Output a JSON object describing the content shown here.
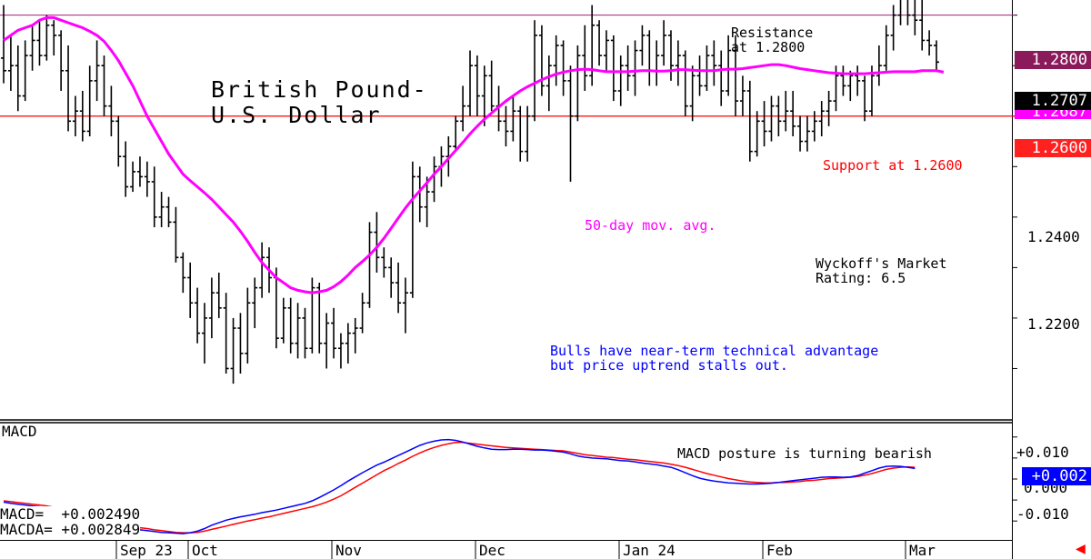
{
  "title_line1": "British Pound-",
  "title_line2": "U.S. Dollar",
  "annotations": {
    "resistance": "Resistance\nat 1.2800",
    "support": "Support at 1.2600",
    "ma": "50-day mov. avg.",
    "rating": "Wyckoff's Market\nRating: 6.5",
    "comment": "Bulls have near-term technical advantage\nbut price uptrend stalls out.",
    "macd_comment": "MACD posture is turning bearish"
  },
  "colors": {
    "price": "#000000",
    "ma": "#ff00ff",
    "resistance_line": "#a0207a",
    "support_line": "#ff0000",
    "resistance_tag": "#8b1a5a",
    "support_tag": "#ff2020",
    "macd": "#0000ff",
    "macda": "#ff0000",
    "text_blue": "#0000ff",
    "text_red": "#ff0000",
    "text_magenta": "#ff00ff"
  },
  "price_tags": {
    "resistance": "1.2800",
    "last": "1.2707",
    "ma": "1.2687",
    "support": "1.2600"
  },
  "macd_tag": "+0.002",
  "macd_panel_label": "MACD",
  "macd_readout": {
    "macd": "MACD=  +0.002490",
    "macda": "MACDA= +0.002849"
  },
  "chart_data": {
    "type": "line",
    "price_axis": {
      "ylim": [
        1.2,
        1.283
      ],
      "ticks": [
        "1.2400",
        "1.2200"
      ]
    },
    "macd_axis": {
      "ylim": [
        -0.0145,
        0.0132
      ],
      "ticks": [
        "+0.010",
        "0.000",
        "-0.010"
      ]
    },
    "x_labels": [
      "Sep 23",
      "Oct",
      "Nov",
      "Dec",
      "Jan 24",
      "Feb",
      "Mar"
    ],
    "x_label_index": [
      16,
      26,
      46,
      66,
      86,
      106,
      126
    ],
    "levels": {
      "resistance": 1.28,
      "support": 1.26
    },
    "price_bars": [
      [
        1.2715,
        1.282,
        1.2665,
        1.269
      ],
      [
        1.269,
        1.276,
        1.265,
        1.27
      ],
      [
        1.27,
        1.274,
        1.261,
        1.264
      ],
      [
        1.264,
        1.275,
        1.263,
        1.272
      ],
      [
        1.272,
        1.278,
        1.269,
        1.275
      ],
      [
        1.275,
        1.279,
        1.27,
        1.272
      ],
      [
        1.272,
        1.28,
        1.271,
        1.278
      ],
      [
        1.278,
        1.279,
        1.272,
        1.276
      ],
      [
        1.276,
        1.277,
        1.265,
        1.269
      ],
      [
        1.269,
        1.274,
        1.257,
        1.259
      ],
      [
        1.259,
        1.264,
        1.256,
        1.261
      ],
      [
        1.261,
        1.265,
        1.255,
        1.257
      ],
      [
        1.257,
        1.27,
        1.256,
        1.267
      ],
      [
        1.267,
        1.275,
        1.263,
        1.27
      ],
      [
        1.27,
        1.272,
        1.26,
        1.262
      ],
      [
        1.262,
        1.266,
        1.256,
        1.259
      ],
      [
        1.259,
        1.26,
        1.25,
        1.252
      ],
      [
        1.252,
        1.255,
        1.244,
        1.246
      ],
      [
        1.246,
        1.251,
        1.245,
        1.249
      ],
      [
        1.249,
        1.252,
        1.246,
        1.248
      ],
      [
        1.248,
        1.251,
        1.244,
        1.247
      ],
      [
        1.247,
        1.25,
        1.238,
        1.24
      ],
      [
        1.24,
        1.245,
        1.238,
        1.242
      ],
      [
        1.242,
        1.244,
        1.238,
        1.239
      ],
      [
        1.239,
        1.242,
        1.231,
        1.232
      ],
      [
        1.232,
        1.233,
        1.225,
        1.228
      ],
      [
        1.228,
        1.231,
        1.22,
        1.223
      ],
      [
        1.223,
        1.226,
        1.215,
        1.217
      ],
      [
        1.217,
        1.223,
        1.211,
        1.22
      ],
      [
        1.22,
        1.228,
        1.216,
        1.225
      ],
      [
        1.225,
        1.229,
        1.22,
        1.222
      ],
      [
        1.222,
        1.225,
        1.209,
        1.21
      ],
      [
        1.21,
        1.22,
        1.207,
        1.218
      ],
      [
        1.218,
        1.221,
        1.209,
        1.213
      ],
      [
        1.213,
        1.226,
        1.211,
        1.223
      ],
      [
        1.223,
        1.228,
        1.218,
        1.226
      ],
      [
        1.226,
        1.235,
        1.224,
        1.232
      ],
      [
        1.232,
        1.234,
        1.225,
        1.228
      ],
      [
        1.228,
        1.23,
        1.214,
        1.216
      ],
      [
        1.216,
        1.224,
        1.215,
        1.222
      ],
      [
        1.222,
        1.224,
        1.213,
        1.215
      ],
      [
        1.215,
        1.223,
        1.212,
        1.22
      ],
      [
        1.22,
        1.222,
        1.212,
        1.214
      ],
      [
        1.214,
        1.228,
        1.213,
        1.226
      ],
      [
        1.226,
        1.227,
        1.213,
        1.215
      ],
      [
        1.215,
        1.221,
        1.21,
        1.219
      ],
      [
        1.219,
        1.222,
        1.212,
        1.214
      ],
      [
        1.214,
        1.217,
        1.21,
        1.215
      ],
      [
        1.215,
        1.219,
        1.211,
        1.217
      ],
      [
        1.217,
        1.22,
        1.213,
        1.218
      ],
      [
        1.218,
        1.225,
        1.217,
        1.223
      ],
      [
        1.223,
        1.239,
        1.222,
        1.237
      ],
      [
        1.237,
        1.241,
        1.229,
        1.232
      ],
      [
        1.232,
        1.234,
        1.228,
        1.23
      ],
      [
        1.23,
        1.232,
        1.224,
        1.227
      ],
      [
        1.227,
        1.231,
        1.221,
        1.223
      ],
      [
        1.223,
        1.228,
        1.217,
        1.225
      ],
      [
        1.225,
        1.251,
        1.224,
        1.248
      ],
      [
        1.248,
        1.25,
        1.239,
        1.242
      ],
      [
        1.242,
        1.248,
        1.238,
        1.245
      ],
      [
        1.245,
        1.252,
        1.243,
        1.25
      ],
      [
        1.25,
        1.254,
        1.246,
        1.252
      ],
      [
        1.252,
        1.256,
        1.248,
        1.254
      ],
      [
        1.254,
        1.26,
        1.253,
        1.259
      ],
      [
        1.259,
        1.266,
        1.257,
        1.262
      ],
      [
        1.262,
        1.273,
        1.26,
        1.27
      ],
      [
        1.27,
        1.272,
        1.26,
        1.264
      ],
      [
        1.264,
        1.27,
        1.258,
        1.268
      ],
      [
        1.268,
        1.271,
        1.261,
        1.262
      ],
      [
        1.262,
        1.266,
        1.257,
        1.259
      ],
      [
        1.259,
        1.262,
        1.254,
        1.257
      ],
      [
        1.257,
        1.264,
        1.255,
        1.261
      ],
      [
        1.261,
        1.262,
        1.251,
        1.253
      ],
      [
        1.253,
        1.262,
        1.251,
        1.26
      ],
      [
        1.26,
        1.279,
        1.259,
        1.276
      ],
      [
        1.276,
        1.278,
        1.264,
        1.266
      ],
      [
        1.266,
        1.272,
        1.261,
        1.27
      ],
      [
        1.27,
        1.276,
        1.266,
        1.274
      ],
      [
        1.274,
        1.275,
        1.264,
        1.267
      ],
      [
        1.267,
        1.27,
        1.247,
        1.26
      ],
      [
        1.26,
        1.274,
        1.259,
        1.272
      ],
      [
        1.272,
        1.278,
        1.265,
        1.268
      ],
      [
        1.268,
        1.282,
        1.266,
        1.278
      ],
      [
        1.278,
        1.279,
        1.27,
        1.272
      ],
      [
        1.272,
        1.277,
        1.269,
        1.275
      ],
      [
        1.275,
        1.276,
        1.263,
        1.265
      ],
      [
        1.265,
        1.272,
        1.262,
        1.27
      ],
      [
        1.27,
        1.274,
        1.265,
        1.268
      ],
      [
        1.268,
        1.275,
        1.264,
        1.273
      ],
      [
        1.273,
        1.278,
        1.27,
        1.276
      ],
      [
        1.276,
        1.277,
        1.266,
        1.269
      ],
      [
        1.269,
        1.275,
        1.266,
        1.272
      ],
      [
        1.272,
        1.279,
        1.27,
        1.276
      ],
      [
        1.276,
        1.277,
        1.267,
        1.27
      ],
      [
        1.27,
        1.275,
        1.266,
        1.272
      ],
      [
        1.272,
        1.273,
        1.26,
        1.262
      ],
      [
        1.262,
        1.27,
        1.259,
        1.268
      ],
      [
        1.268,
        1.272,
        1.264,
        1.266
      ],
      [
        1.266,
        1.274,
        1.265,
        1.272
      ],
      [
        1.272,
        1.275,
        1.266,
        1.27
      ],
      [
        1.27,
        1.273,
        1.262,
        1.265
      ],
      [
        1.265,
        1.276,
        1.264,
        1.273
      ],
      [
        1.273,
        1.276,
        1.26,
        1.263
      ],
      [
        1.263,
        1.268,
        1.26,
        1.265
      ],
      [
        1.265,
        1.267,
        1.251,
        1.253
      ],
      [
        1.253,
        1.261,
        1.252,
        1.259
      ],
      [
        1.259,
        1.263,
        1.254,
        1.257
      ],
      [
        1.257,
        1.264,
        1.255,
        1.262
      ],
      [
        1.262,
        1.264,
        1.256,
        1.259
      ],
      [
        1.259,
        1.265,
        1.257,
        1.261
      ],
      [
        1.261,
        1.265,
        1.256,
        1.258
      ],
      [
        1.258,
        1.26,
        1.253,
        1.255
      ],
      [
        1.255,
        1.26,
        1.253,
        1.257
      ],
      [
        1.257,
        1.261,
        1.255,
        1.259
      ],
      [
        1.259,
        1.263,
        1.256,
        1.261
      ],
      [
        1.261,
        1.265,
        1.258,
        1.263
      ],
      [
        1.263,
        1.27,
        1.261,
        1.268
      ],
      [
        1.268,
        1.27,
        1.264,
        1.266
      ],
      [
        1.266,
        1.269,
        1.263,
        1.268
      ],
      [
        1.268,
        1.27,
        1.264,
        1.267
      ],
      [
        1.267,
        1.268,
        1.259,
        1.261
      ],
      [
        1.261,
        1.27,
        1.26,
        1.268
      ],
      [
        1.268,
        1.274,
        1.266,
        1.27
      ],
      [
        1.27,
        1.278,
        1.269,
        1.276
      ],
      [
        1.276,
        1.282,
        1.273,
        1.28
      ],
      [
        1.28,
        1.29,
        1.278,
        1.286
      ],
      [
        1.286,
        1.288,
        1.278,
        1.28
      ],
      [
        1.28,
        1.284,
        1.276,
        1.279
      ],
      [
        1.279,
        1.283,
        1.273,
        1.275
      ],
      [
        1.275,
        1.277,
        1.272,
        1.274
      ],
      [
        1.274,
        1.275,
        1.269,
        1.2707
      ]
    ],
    "ma_50": [
      1.275,
      1.276,
      1.277,
      1.2775,
      1.278,
      1.279,
      1.2795,
      1.2795,
      1.279,
      1.2785,
      1.278,
      1.2775,
      1.2768,
      1.276,
      1.2748,
      1.273,
      1.271,
      1.2685,
      1.266,
      1.263,
      1.26,
      1.2575,
      1.255,
      1.2525,
      1.2505,
      1.2485,
      1.2472,
      1.246,
      1.2448,
      1.2435,
      1.242,
      1.2405,
      1.239,
      1.2372,
      1.2352,
      1.233,
      1.231,
      1.2295,
      1.228,
      1.227,
      1.226,
      1.2255,
      1.2252,
      1.225,
      1.2252,
      1.2255,
      1.2262,
      1.2272,
      1.2285,
      1.23,
      1.2312,
      1.2325,
      1.234,
      1.2358,
      1.2378,
      1.2398,
      1.2418,
      1.2436,
      1.2452,
      1.2468,
      1.2485,
      1.25,
      1.2516,
      1.2532,
      1.2548,
      1.2565,
      1.258,
      1.2594,
      1.2606,
      1.2618,
      1.263,
      1.264,
      1.265,
      1.2658,
      1.2665,
      1.2672,
      1.2678,
      1.2683,
      1.2687,
      1.269,
      1.2692,
      1.2693,
      1.2692,
      1.269,
      1.2688,
      1.2688,
      1.2688,
      1.2688,
      1.2689,
      1.269,
      1.269,
      1.2689,
      1.2689,
      1.269,
      1.2692,
      1.2692,
      1.2691,
      1.269,
      1.269,
      1.269,
      1.2692,
      1.2693,
      1.2693,
      1.2694,
      1.2696,
      1.2698,
      1.27,
      1.2702,
      1.2702,
      1.27,
      1.2697,
      1.2694,
      1.2692,
      1.269,
      1.2688,
      1.2686,
      1.2685,
      1.2684,
      1.2684,
      1.2684,
      1.2684,
      1.2685,
      1.2686,
      1.2687,
      1.2688,
      1.2688,
      1.2688,
      1.2688,
      1.269,
      1.269,
      1.269,
      1.2687
    ],
    "macd_series": [
      [
        -0.0055,
        -0.0052
      ],
      [
        -0.0058,
        -0.0054
      ],
      [
        -0.006,
        -0.0056
      ],
      [
        -0.0062,
        -0.0058
      ],
      [
        -0.0064,
        -0.006
      ],
      [
        -0.0066,
        -0.0062
      ],
      [
        -0.007,
        -0.0064
      ],
      [
        -0.0075,
        -0.0067
      ],
      [
        -0.008,
        -0.0071
      ],
      [
        -0.0085,
        -0.0075
      ],
      [
        -0.009,
        -0.008
      ],
      [
        -0.0095,
        -0.0085
      ],
      [
        -0.01,
        -0.009
      ],
      [
        -0.0105,
        -0.0095
      ],
      [
        -0.011,
        -0.01
      ],
      [
        -0.0113,
        -0.0104
      ],
      [
        -0.0116,
        -0.0108
      ],
      [
        -0.0118,
        -0.0111
      ],
      [
        -0.0119,
        -0.0113
      ],
      [
        -0.0121,
        -0.0116
      ],
      [
        -0.0123,
        -0.0118
      ],
      [
        -0.0125,
        -0.0121
      ],
      [
        -0.0127,
        -0.0123
      ],
      [
        -0.0128,
        -0.0125
      ],
      [
        -0.0129,
        -0.0127
      ],
      [
        -0.013,
        -0.0128
      ],
      [
        -0.0128,
        -0.0128
      ],
      [
        -0.0124,
        -0.0127
      ],
      [
        -0.0118,
        -0.0124
      ],
      [
        -0.011,
        -0.012
      ],
      [
        -0.0104,
        -0.0116
      ],
      [
        -0.0098,
        -0.0112
      ],
      [
        -0.0094,
        -0.0108
      ],
      [
        -0.009,
        -0.0104
      ],
      [
        -0.0087,
        -0.01
      ],
      [
        -0.0084,
        -0.0097
      ],
      [
        -0.008,
        -0.0093
      ],
      [
        -0.0077,
        -0.009
      ],
      [
        -0.0074,
        -0.0086
      ],
      [
        -0.007,
        -0.0082
      ],
      [
        -0.0066,
        -0.0078
      ],
      [
        -0.0062,
        -0.0074
      ],
      [
        -0.0058,
        -0.007
      ],
      [
        -0.0052,
        -0.0066
      ],
      [
        -0.0044,
        -0.0061
      ],
      [
        -0.0035,
        -0.0055
      ],
      [
        -0.0026,
        -0.0048
      ],
      [
        -0.0016,
        -0.004
      ],
      [
        -0.0005,
        -0.003
      ],
      [
        0.0005,
        -0.002
      ],
      [
        0.0015,
        -0.001
      ],
      [
        0.0024,
        0.0
      ],
      [
        0.0033,
        0.001
      ],
      [
        0.004,
        0.002
      ],
      [
        0.0048,
        0.0028
      ],
      [
        0.0056,
        0.0037
      ],
      [
        0.0064,
        0.0045
      ],
      [
        0.0072,
        0.0054
      ],
      [
        0.008,
        0.0062
      ],
      [
        0.0086,
        0.0069
      ],
      [
        0.009,
        0.0075
      ],
      [
        0.0093,
        0.008
      ],
      [
        0.0094,
        0.0084
      ],
      [
        0.0092,
        0.0087
      ],
      [
        0.0088,
        0.0087
      ],
      [
        0.0083,
        0.0085
      ],
      [
        0.0078,
        0.0083
      ],
      [
        0.0074,
        0.0081
      ],
      [
        0.0071,
        0.0079
      ],
      [
        0.007,
        0.0077
      ],
      [
        0.007,
        0.0075
      ],
      [
        0.0071,
        0.0074
      ],
      [
        0.0071,
        0.0073
      ],
      [
        0.007,
        0.0072
      ],
      [
        0.0069,
        0.0071
      ],
      [
        0.0069,
        0.007
      ],
      [
        0.0068,
        0.0069
      ],
      [
        0.0066,
        0.0068
      ],
      [
        0.0064,
        0.0067
      ],
      [
        0.006,
        0.0064
      ],
      [
        0.0055,
        0.0061
      ],
      [
        0.0052,
        0.0058
      ],
      [
        0.005,
        0.0056
      ],
      [
        0.0049,
        0.0054
      ],
      [
        0.0048,
        0.0052
      ],
      [
        0.0046,
        0.0051
      ],
      [
        0.0044,
        0.0049
      ],
      [
        0.0043,
        0.0047
      ],
      [
        0.0041,
        0.0046
      ],
      [
        0.0038,
        0.0044
      ],
      [
        0.0036,
        0.0042
      ],
      [
        0.0034,
        0.004
      ],
      [
        0.0031,
        0.0038
      ],
      [
        0.0028,
        0.0035
      ],
      [
        0.0022,
        0.0032
      ],
      [
        0.0015,
        0.0028
      ],
      [
        0.0008,
        0.0023
      ],
      [
        0.0002,
        0.0018
      ],
      [
        -0.0002,
        0.0013
      ],
      [
        -0.0005,
        0.0009
      ],
      [
        -0.0007,
        0.0005
      ],
      [
        -0.0009,
        0.0001
      ],
      [
        -0.001,
        -0.0002
      ],
      [
        -0.0011,
        -0.0005
      ],
      [
        -0.0012,
        -0.0007
      ],
      [
        -0.0012,
        -0.0008
      ],
      [
        -0.0011,
        -0.0009
      ],
      [
        -0.001,
        -0.0009
      ],
      [
        -0.0008,
        -0.0008
      ],
      [
        -0.0006,
        -0.0008
      ],
      [
        -0.0004,
        -0.0007
      ],
      [
        -0.0002,
        -0.0006
      ],
      [
        0.0,
        -0.0004
      ],
      [
        0.0002,
        -0.0003
      ],
      [
        0.0004,
        -0.0001
      ],
      [
        0.0005,
        0.0001
      ],
      [
        0.0005,
        0.0002
      ],
      [
        0.0004,
        0.0003
      ],
      [
        0.0005,
        0.0004
      ],
      [
        0.0008,
        0.0006
      ],
      [
        0.0014,
        0.0009
      ],
      [
        0.002,
        0.0013
      ],
      [
        0.0026,
        0.0018
      ],
      [
        0.003,
        0.0023
      ],
      [
        0.0031,
        0.0026
      ],
      [
        0.003,
        0.0028
      ],
      [
        0.0028,
        0.0029
      ],
      [
        0.0025,
        0.0028
      ]
    ]
  }
}
